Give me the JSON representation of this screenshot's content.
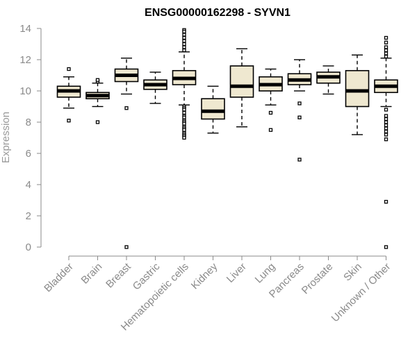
{
  "chart_data": {
    "type": "box",
    "title": "ENSG00000162298 - SYVN1",
    "xlabel": "",
    "ylabel": "Expression",
    "ylim": [
      0,
      14
    ],
    "yticks": [
      0,
      2,
      4,
      6,
      8,
      10,
      12,
      14
    ],
    "grid": false,
    "legend": "none",
    "colors": {
      "box_fill": "#efe8d0",
      "stroke": "#000000",
      "axis": "#8a8a8a",
      "axis_text": "#8a8a8a"
    },
    "categories": [
      "Bladder",
      "Brain",
      "Breast",
      "Gastric",
      "Hematopoietic cells",
      "Kidney",
      "Liver",
      "Lung",
      "Pancreas",
      "Prostate",
      "Skin",
      "Unknown / Other"
    ],
    "boxes": [
      {
        "category": "Bladder",
        "whisker_low": 8.9,
        "q1": 9.6,
        "median": 10.0,
        "q3": 10.3,
        "whisker_high": 10.9,
        "outliers": [
          8.1,
          11.4
        ]
      },
      {
        "category": "Brain",
        "whisker_low": 9.0,
        "q1": 9.5,
        "median": 9.7,
        "q3": 9.9,
        "whisker_high": 10.5,
        "outliers": [
          8.0,
          10.6,
          10.7
        ]
      },
      {
        "category": "Breast",
        "whisker_low": 9.8,
        "q1": 10.6,
        "median": 11.0,
        "q3": 11.4,
        "whisker_high": 12.1,
        "outliers": [
          8.9,
          0.0
        ]
      },
      {
        "category": "Gastric",
        "whisker_low": 9.2,
        "q1": 10.1,
        "median": 10.4,
        "q3": 10.7,
        "whisker_high": 11.2,
        "outliers": []
      },
      {
        "category": "Hematopoietic cells",
        "whisker_low": 9.1,
        "q1": 10.4,
        "median": 10.8,
        "q3": 11.3,
        "whisker_high": 12.5,
        "outliers": [
          13.9,
          13.8,
          13.6,
          13.4,
          13.2,
          13.0,
          12.8,
          12.6,
          9.0,
          8.9,
          8.8,
          8.6,
          8.4,
          8.3,
          8.1,
          8.0,
          7.9,
          7.7,
          7.6,
          7.5,
          7.3,
          7.2,
          7.1,
          7.0
        ]
      },
      {
        "category": "Kidney",
        "whisker_low": 7.3,
        "q1": 8.2,
        "median": 8.7,
        "q3": 9.5,
        "whisker_high": 10.3,
        "outliers": []
      },
      {
        "category": "Liver",
        "whisker_low": 7.7,
        "q1": 9.6,
        "median": 10.3,
        "q3": 11.6,
        "whisker_high": 12.7,
        "outliers": []
      },
      {
        "category": "Lung",
        "whisker_low": 9.1,
        "q1": 10.0,
        "median": 10.4,
        "q3": 10.9,
        "whisker_high": 11.4,
        "outliers": [
          8.6,
          7.5
        ]
      },
      {
        "category": "Pancreas",
        "whisker_low": 10.0,
        "q1": 10.4,
        "median": 10.7,
        "q3": 11.1,
        "whisker_high": 12.0,
        "outliers": [
          9.2,
          8.3,
          5.6
        ]
      },
      {
        "category": "Prostate",
        "whisker_low": 9.8,
        "q1": 10.5,
        "median": 10.9,
        "q3": 11.2,
        "whisker_high": 11.6,
        "outliers": []
      },
      {
        "category": "Skin",
        "whisker_low": 7.2,
        "q1": 9.0,
        "median": 10.0,
        "q3": 11.3,
        "whisker_high": 12.3,
        "outliers": []
      },
      {
        "category": "Unknown / Other",
        "whisker_low": 9.0,
        "q1": 9.9,
        "median": 10.3,
        "q3": 10.7,
        "whisker_high": 12.1,
        "outliers": [
          13.4,
          13.1,
          12.8,
          12.6,
          12.4,
          12.2,
          8.8,
          8.4,
          8.2,
          8.0,
          7.8,
          7.6,
          7.4,
          7.2,
          6.9,
          2.9,
          0.0
        ]
      }
    ]
  }
}
